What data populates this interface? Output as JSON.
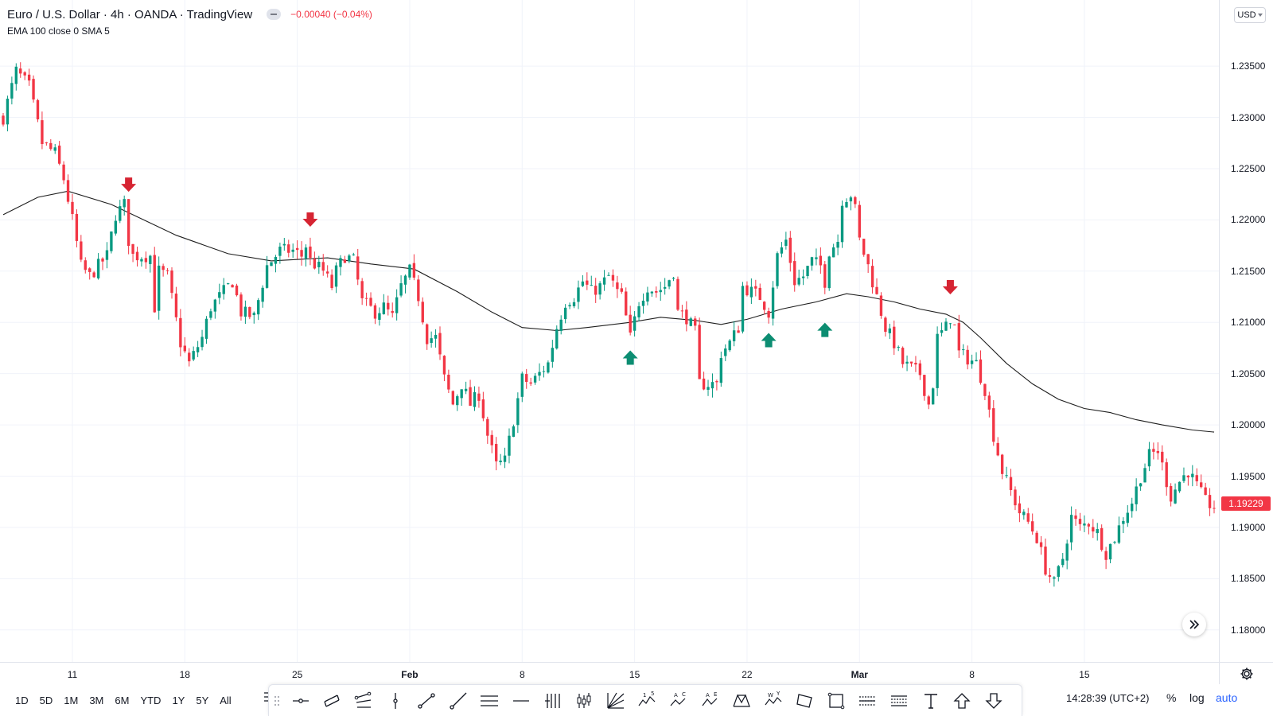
{
  "legend": {
    "symbol_title": "Euro / U.S. Dollar · 4h · OANDA · TradingView",
    "change": "−0.00040 (−0.04%)",
    "study": "EMA 100 close 0 SMA 5"
  },
  "price_axis": {
    "currency": "USD",
    "labels": [
      "1.23500",
      "1.23000",
      "1.22500",
      "1.22000",
      "1.21500",
      "1.21000",
      "1.20500",
      "1.20000",
      "1.19500",
      "1.19000",
      "1.18500",
      "1.18000"
    ],
    "current_price": "1.19229"
  },
  "time_axis": {
    "labels": [
      "11",
      "18",
      "25",
      "Feb",
      "8",
      "15",
      "22",
      "Mar",
      "8",
      "15"
    ]
  },
  "range_buttons": [
    "1D",
    "5D",
    "1M",
    "3M",
    "6M",
    "YTD",
    "1Y",
    "5Y",
    "All"
  ],
  "drawing_tools": [
    "cross-line-icon",
    "parallel-channel-icon",
    "regression-trend-icon",
    "vertical-line-icon",
    "trend-line-icon",
    "ray-icon",
    "horizontal-lines-icon",
    "horizontal-line-icon",
    "vertical-lines-icon",
    "candles-icon",
    "gann-fan-icon",
    "elliott-wave-icon",
    "abcd-pattern-icon",
    "ace-pattern-icon",
    "xabcd-pattern-icon",
    "wxy-pattern-icon",
    "rotated-rectangle-icon",
    "rectangle-icon",
    "long-position-icon",
    "short-position-icon",
    "text-icon",
    "arrow-up-icon",
    "arrow-down-icon"
  ],
  "tool_letters": {
    "elliott": [
      "1",
      "5"
    ],
    "abcd": [
      "A",
      "C"
    ],
    "ace": [
      "A",
      "E"
    ],
    "wxy": [
      "W",
      "Y"
    ]
  },
  "bottom_bar": {
    "clock": "14:28:39 (UTC+2)",
    "percent_label": "%",
    "log_label": "log",
    "auto_label": "auto"
  },
  "colors": {
    "up": "#089981",
    "down": "#f23645",
    "ema": "#1e1e1e",
    "sell_arrow": "#d62432",
    "buy_arrow": "#0c8d72",
    "grid": "#f0f3fa"
  },
  "chart_data": {
    "type": "candlestick",
    "title": "Euro / U.S. Dollar · 4h · OANDA · TradingView",
    "ylim": [
      1.1775,
      1.2385
    ],
    "x_ticks": [
      {
        "label": "11",
        "index": 16
      },
      {
        "label": "18",
        "index": 42
      },
      {
        "label": "25",
        "index": 68
      },
      {
        "label": "Feb",
        "index": 94
      },
      {
        "label": "8",
        "index": 120
      },
      {
        "label": "15",
        "index": 146
      },
      {
        "label": "22",
        "index": 172
      },
      {
        "label": "Mar",
        "index": 198
      },
      {
        "label": "8",
        "index": 224
      },
      {
        "label": "15",
        "index": 250
      }
    ],
    "path": [
      [
        0,
        1.23
      ],
      [
        3,
        1.2345
      ],
      [
        6,
        1.233
      ],
      [
        9,
        1.2275
      ],
      [
        12,
        1.2265
      ],
      [
        14,
        1.224
      ],
      [
        16,
        1.22
      ],
      [
        18,
        1.2155
      ],
      [
        20,
        1.2145
      ],
      [
        24,
        1.2165
      ],
      [
        26,
        1.2205
      ],
      [
        28,
        1.2215
      ],
      [
        29,
        1.218
      ],
      [
        30,
        1.2165
      ],
      [
        34,
        1.2165
      ],
      [
        35,
        1.2115
      ],
      [
        36,
        1.215
      ],
      [
        38,
        1.2145
      ],
      [
        41,
        1.208
      ],
      [
        43,
        1.206
      ],
      [
        46,
        1.2085
      ],
      [
        48,
        1.2115
      ],
      [
        51,
        1.213
      ],
      [
        53,
        1.214
      ],
      [
        55,
        1.211
      ],
      [
        58,
        1.2105
      ],
      [
        61,
        1.2155
      ],
      [
        64,
        1.217
      ],
      [
        67,
        1.217
      ],
      [
        69,
        1.2165
      ],
      [
        70,
        1.2175
      ],
      [
        71,
        1.216
      ],
      [
        74,
        1.215
      ],
      [
        76,
        1.2135
      ],
      [
        77,
        1.215
      ],
      [
        79,
        1.2165
      ],
      [
        81,
        1.216
      ],
      [
        83,
        1.212
      ],
      [
        86,
        1.211
      ],
      [
        88,
        1.2115
      ],
      [
        90,
        1.2105
      ],
      [
        92,
        1.2135
      ],
      [
        94,
        1.215
      ],
      [
        96,
        1.2125
      ],
      [
        98,
        1.2085
      ],
      [
        100,
        1.2085
      ],
      [
        102,
        1.2045
      ],
      [
        104,
        1.202
      ],
      [
        106,
        1.204
      ],
      [
        108,
        1.202
      ],
      [
        110,
        1.203
      ],
      [
        112,
        1.199
      ],
      [
        114,
        1.196
      ],
      [
        116,
        1.1965
      ],
      [
        118,
        1.2005
      ],
      [
        120,
        1.2045
      ],
      [
        122,
        1.204
      ],
      [
        124,
        1.205
      ],
      [
        126,
        1.206
      ],
      [
        128,
        1.2095
      ],
      [
        130,
        1.212
      ],
      [
        132,
        1.2125
      ],
      [
        134,
        1.214
      ],
      [
        136,
        1.213
      ],
      [
        138,
        1.2135
      ],
      [
        140,
        1.2145
      ],
      [
        142,
        1.213
      ],
      [
        143,
        1.2125
      ],
      [
        145,
        1.2085
      ],
      [
        147,
        1.212
      ],
      [
        149,
        1.2135
      ],
      [
        151,
        1.213
      ],
      [
        153,
        1.2135
      ],
      [
        155,
        1.215
      ],
      [
        156,
        1.211
      ],
      [
        158,
        1.2105
      ],
      [
        160,
        1.209
      ],
      [
        161,
        1.204
      ],
      [
        163,
        1.204
      ],
      [
        165,
        1.204
      ],
      [
        166,
        1.207
      ],
      [
        168,
        1.208
      ],
      [
        170,
        1.2095
      ],
      [
        171,
        1.2135
      ],
      [
        173,
        1.213
      ],
      [
        175,
        1.2125
      ],
      [
        177,
        1.211
      ],
      [
        179,
        1.2165
      ],
      [
        181,
        1.218
      ],
      [
        183,
        1.214
      ],
      [
        185,
        1.2145
      ],
      [
        187,
        1.216
      ],
      [
        189,
        1.2155
      ],
      [
        190,
        1.214
      ],
      [
        191,
        1.217
      ],
      [
        193,
        1.218
      ],
      [
        194,
        1.222
      ],
      [
        196,
        1.2225
      ],
      [
        197,
        1.221
      ],
      [
        198,
        1.218
      ],
      [
        200,
        1.2155
      ],
      [
        202,
        1.2125
      ],
      [
        204,
        1.2095
      ],
      [
        206,
        1.208
      ],
      [
        208,
        1.206
      ],
      [
        210,
        1.2055
      ],
      [
        212,
        1.205
      ],
      [
        214,
        1.202
      ],
      [
        215,
        1.204
      ],
      [
        216,
        1.2085
      ],
      [
        218,
        1.2095
      ],
      [
        219,
        1.2105
      ],
      [
        220,
        1.2095
      ],
      [
        221,
        1.207
      ],
      [
        223,
        1.2065
      ],
      [
        225,
        1.206
      ],
      [
        227,
        1.2035
      ],
      [
        229,
        1.199
      ],
      [
        231,
        1.1955
      ],
      [
        233,
        1.1935
      ],
      [
        235,
        1.1915
      ],
      [
        237,
        1.1905
      ],
      [
        239,
        1.189
      ],
      [
        241,
        1.186
      ],
      [
        243,
        1.1845
      ],
      [
        245,
        1.187
      ],
      [
        247,
        1.191
      ],
      [
        249,
        1.19
      ],
      [
        251,
        1.1905
      ],
      [
        253,
        1.1895
      ],
      [
        255,
        1.1875
      ],
      [
        257,
        1.189
      ],
      [
        259,
        1.191
      ],
      [
        261,
        1.1925
      ],
      [
        263,
        1.195
      ],
      [
        265,
        1.197
      ],
      [
        267,
        1.1975
      ],
      [
        268,
        1.196
      ],
      [
        270,
        1.193
      ],
      [
        272,
        1.1945
      ],
      [
        274,
        1.1955
      ],
      [
        276,
        1.194
      ],
      [
        278,
        1.1925
      ],
      [
        280,
        1.192
      ]
    ],
    "ema_100": [
      [
        0,
        1.2205
      ],
      [
        8,
        1.2222
      ],
      [
        15,
        1.2228
      ],
      [
        25,
        1.2215
      ],
      [
        40,
        1.2185
      ],
      [
        52,
        1.2167
      ],
      [
        62,
        1.216
      ],
      [
        75,
        1.2163
      ],
      [
        85,
        1.2157
      ],
      [
        95,
        1.2152
      ],
      [
        105,
        1.213
      ],
      [
        113,
        1.211
      ],
      [
        120,
        1.2095
      ],
      [
        128,
        1.2092
      ],
      [
        135,
        1.2095
      ],
      [
        145,
        1.21
      ],
      [
        152,
        1.2105
      ],
      [
        160,
        1.2102
      ],
      [
        166,
        1.2098
      ],
      [
        172,
        1.2103
      ],
      [
        180,
        1.2113
      ],
      [
        188,
        1.212
      ],
      [
        195,
        1.2128
      ],
      [
        200,
        1.2125
      ],
      [
        206,
        1.212
      ],
      [
        212,
        1.2113
      ],
      [
        218,
        1.2108
      ],
      [
        222,
        1.21
      ],
      [
        226,
        1.2085
      ],
      [
        232,
        1.206
      ],
      [
        238,
        1.204
      ],
      [
        244,
        1.2025
      ],
      [
        250,
        1.2016
      ],
      [
        256,
        1.2012
      ],
      [
        262,
        1.2005
      ],
      [
        268,
        1.2
      ],
      [
        275,
        1.1995
      ],
      [
        280,
        1.1993
      ]
    ],
    "signals": [
      {
        "type": "sell",
        "index": 29,
        "price": 1.2232
      },
      {
        "type": "sell",
        "index": 71,
        "price": 1.2198
      },
      {
        "type": "buy",
        "index": 145,
        "price": 1.2068
      },
      {
        "type": "buy",
        "index": 177,
        "price": 1.2085
      },
      {
        "type": "buy",
        "index": 190,
        "price": 1.2095
      },
      {
        "type": "sell",
        "index": 219,
        "price": 1.2132
      }
    ]
  }
}
